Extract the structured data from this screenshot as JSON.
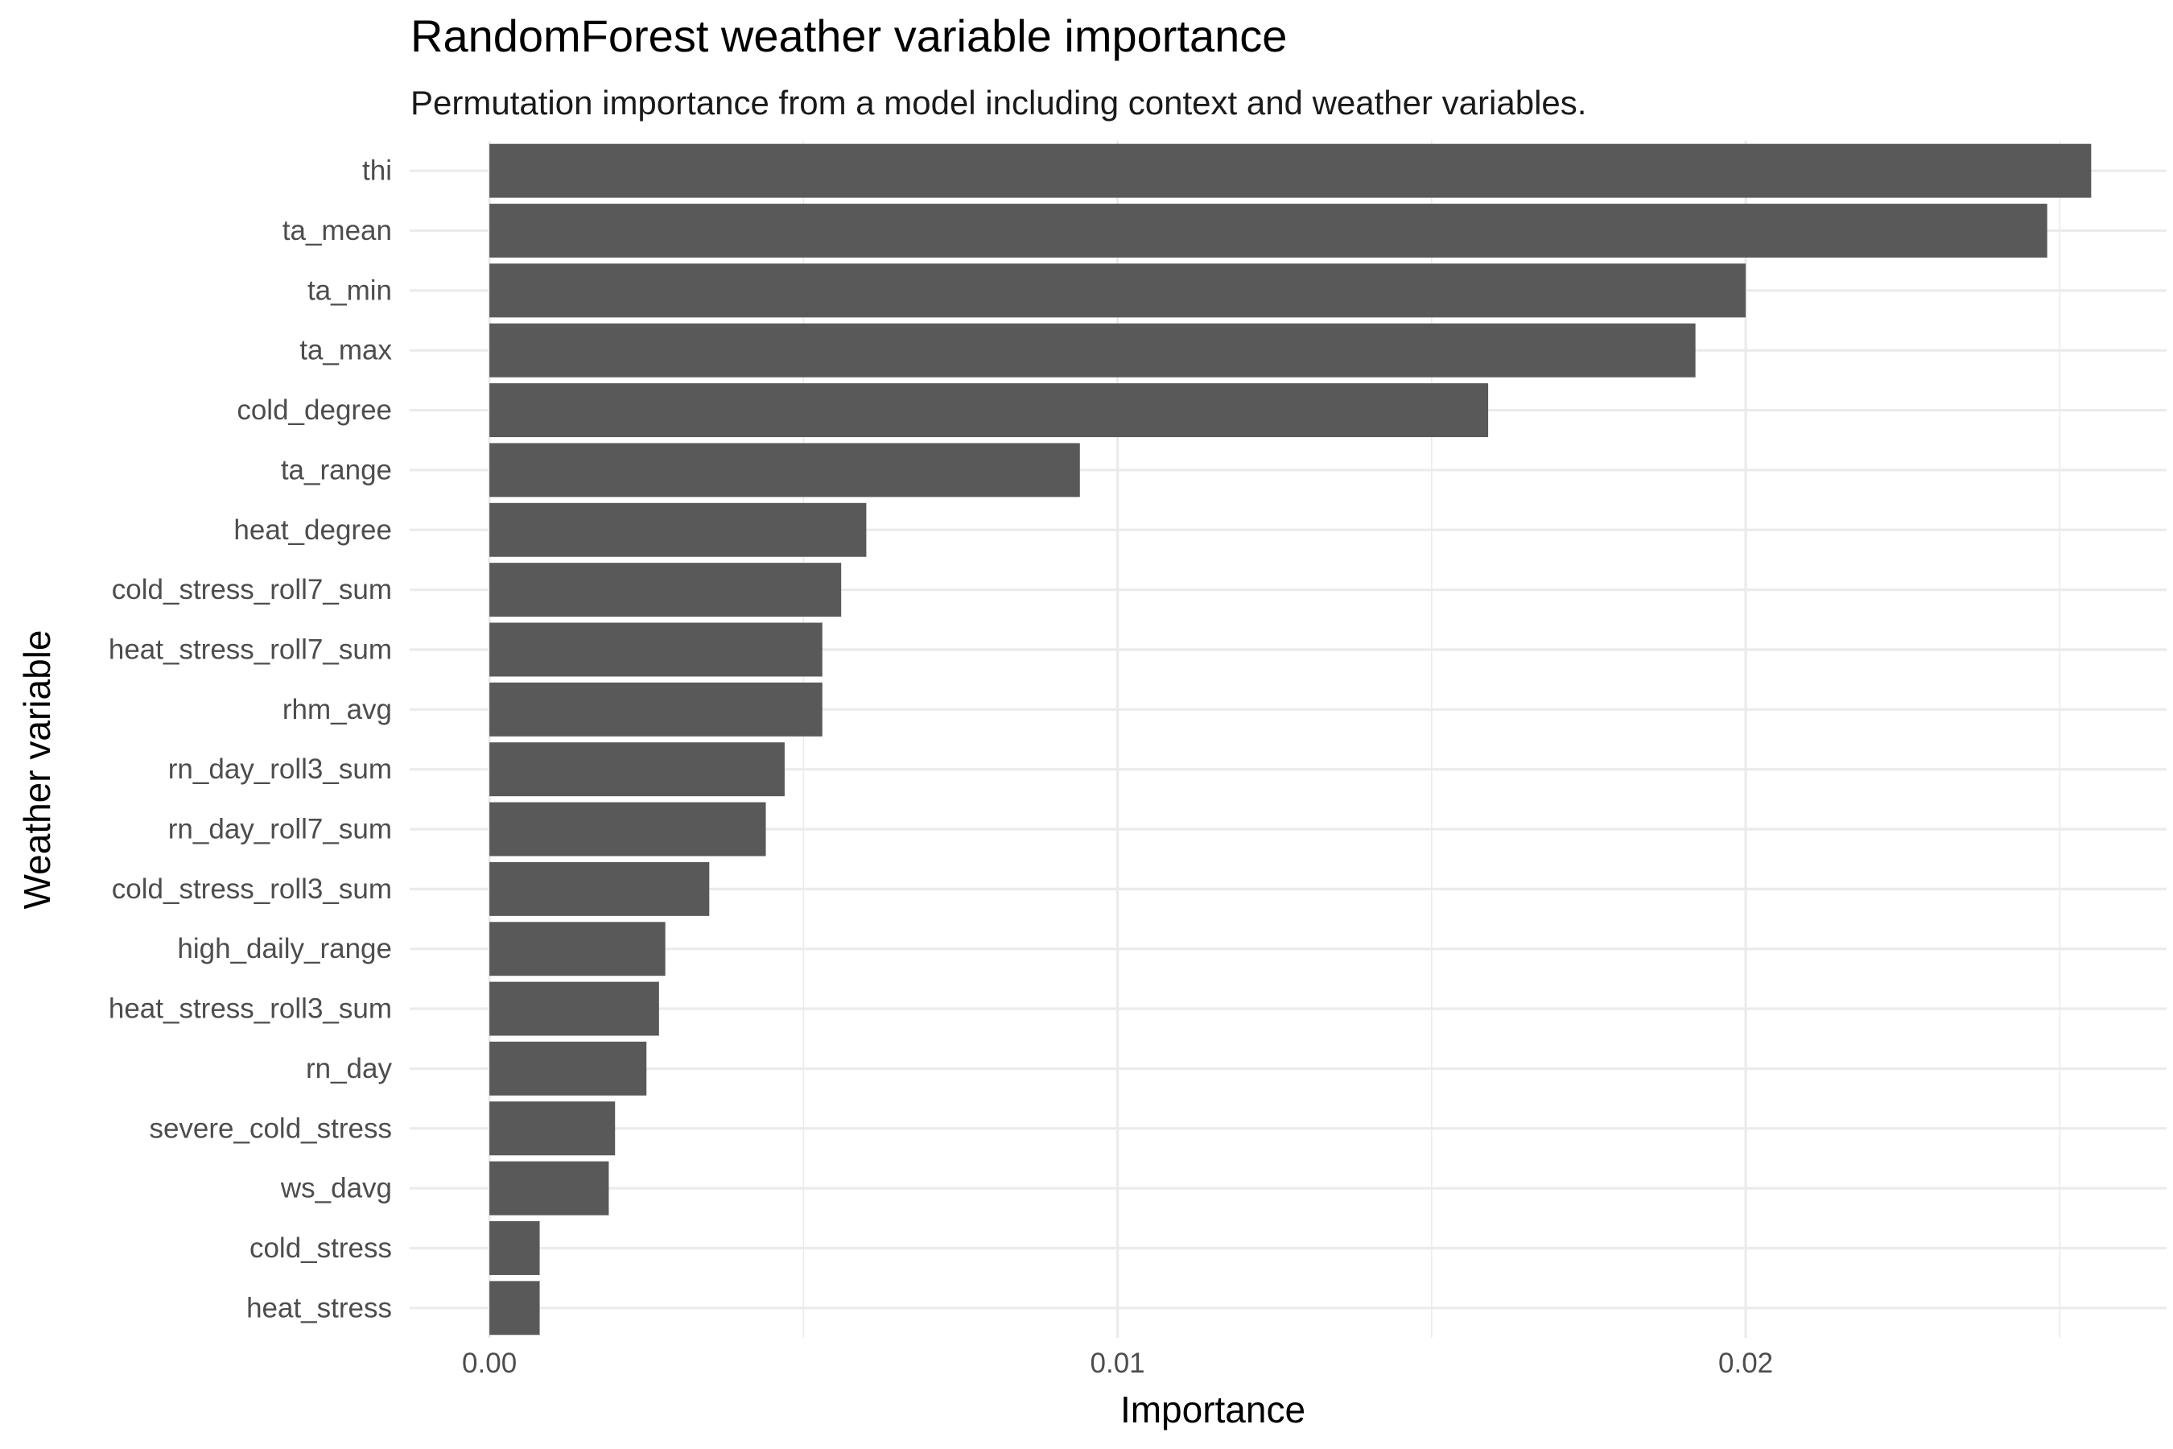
{
  "chart_data": {
    "type": "bar",
    "orientation": "horizontal",
    "title": "RandomForest weather variable importance",
    "subtitle": "Permutation importance from a model including context and weather variables.",
    "xlabel": "Importance",
    "ylabel": "Weather variable",
    "categories": [
      "thi",
      "ta_mean",
      "ta_min",
      "ta_max",
      "cold_degree",
      "ta_range",
      "heat_degree",
      "cold_stress_roll7_sum",
      "heat_stress_roll7_sum",
      "rhm_avg",
      "rn_day_roll3_sum",
      "rn_day_roll7_sum",
      "cold_stress_roll3_sum",
      "high_daily_range",
      "heat_stress_roll3_sum",
      "rn_day",
      "severe_cold_stress",
      "ws_davg",
      "cold_stress",
      "heat_stress"
    ],
    "values": [
      0.0255,
      0.0248,
      0.02,
      0.0192,
      0.0159,
      0.0094,
      0.006,
      0.0056,
      0.0053,
      0.0053,
      0.0047,
      0.0044,
      0.0035,
      0.0028,
      0.0027,
      0.0025,
      0.002,
      0.0019,
      0.0008,
      0.0008
    ],
    "xlim": [
      -0.00127,
      0.0267
    ],
    "xticks": [
      0.0,
      0.01,
      0.02
    ],
    "xtick_labels": [
      "0.00",
      "0.01",
      "0.02"
    ],
    "grid": true,
    "legend": "none",
    "bar_color": "#595959",
    "grid_color": "#ebebeb"
  }
}
